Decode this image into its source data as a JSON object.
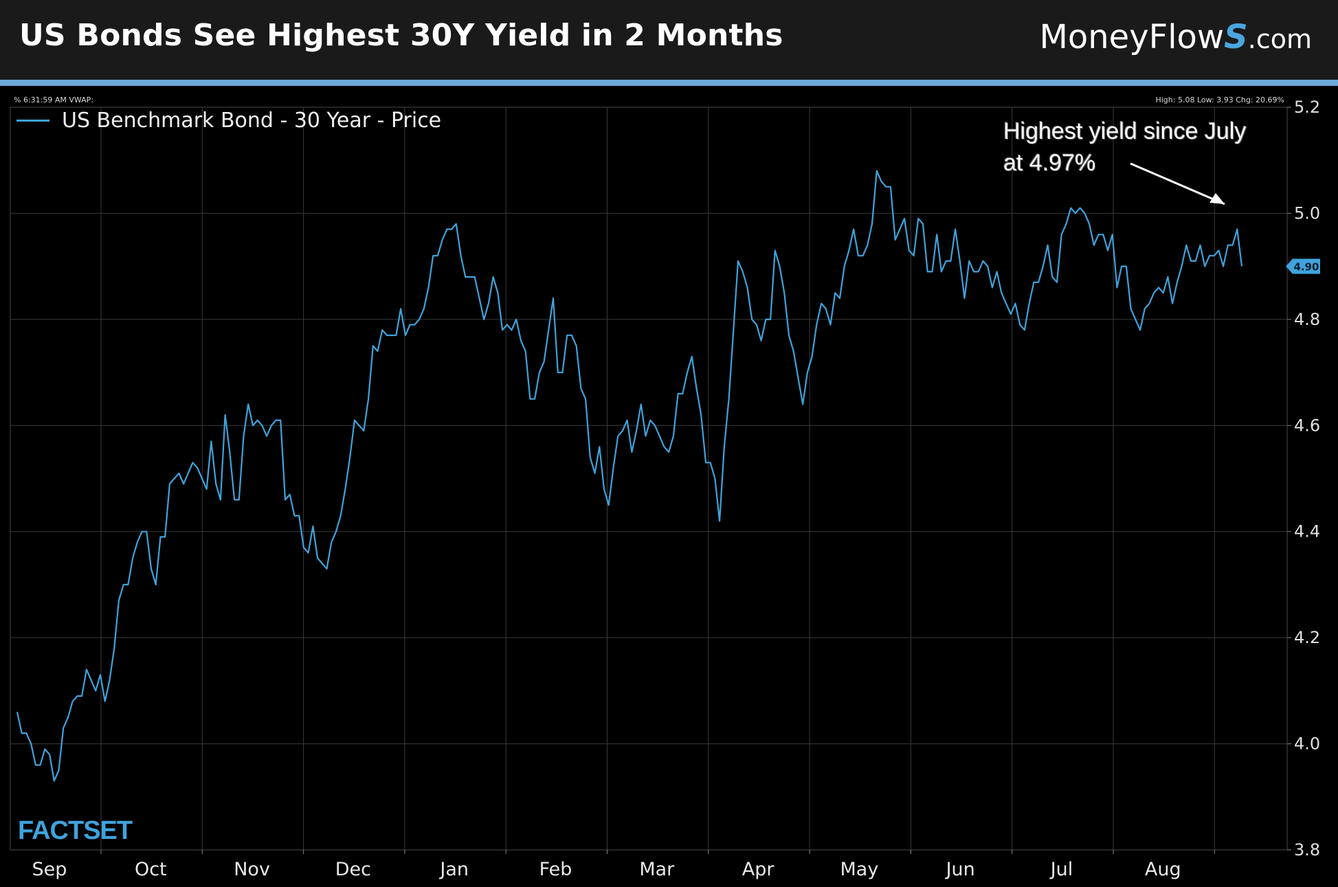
{
  "header": {
    "title": "US Bonds See Highest 30Y Yield in 2 Months",
    "brand_main": "MoneyFlow",
    "brand_s": "S",
    "brand_suffix": ".com"
  },
  "colors": {
    "header_bg": "#1a1a1a",
    "accent_bar": "#6aa9d8",
    "line": "#3fa3dc",
    "grid": "#3a3a3a",
    "background": "#000000",
    "last_value_tag": "#3fa3dc"
  },
  "status_bar": {
    "left": "% 6:31:59 AM VWAP:",
    "right": "High: 5.08 Low: 3.93 Chg: 20.69%"
  },
  "annotation": {
    "line1": "Highest yield since July",
    "line2": "at 4.97%"
  },
  "source_logo": "FACTSET",
  "chart_data": {
    "type": "line",
    "series": [
      {
        "name": "US Benchmark Bond - 30 Year - Price",
        "values": [
          4.06,
          4.02,
          4.02,
          4.0,
          3.96,
          3.96,
          3.99,
          3.98,
          3.93,
          3.95,
          4.03,
          4.05,
          4.08,
          4.09,
          4.09,
          4.14,
          4.12,
          4.1,
          4.13,
          4.08,
          4.12,
          4.18,
          4.27,
          4.3,
          4.3,
          4.35,
          4.38,
          4.4,
          4.4,
          4.33,
          4.3,
          4.39,
          4.39,
          4.49,
          4.5,
          4.51,
          4.49,
          4.51,
          4.53,
          4.52,
          4.5,
          4.48,
          4.57,
          4.49,
          4.46,
          4.62,
          4.55,
          4.46,
          4.46,
          4.58,
          4.64,
          4.6,
          4.61,
          4.6,
          4.58,
          4.6,
          4.61,
          4.61,
          4.46,
          4.47,
          4.43,
          4.43,
          4.37,
          4.36,
          4.41,
          4.35,
          4.34,
          4.33,
          4.38,
          4.4,
          4.43,
          4.48,
          4.54,
          4.61,
          4.6,
          4.59,
          4.65,
          4.75,
          4.74,
          4.78,
          4.77,
          4.77,
          4.77,
          4.82,
          4.77,
          4.79,
          4.79,
          4.8,
          4.82,
          4.86,
          4.92,
          4.92,
          4.95,
          4.97,
          4.97,
          4.98,
          4.92,
          4.88,
          4.88,
          4.88,
          4.84,
          4.8,
          4.83,
          4.88,
          4.85,
          4.78,
          4.79,
          4.78,
          4.8,
          4.76,
          4.74,
          4.65,
          4.65,
          4.7,
          4.72,
          4.78,
          4.84,
          4.7,
          4.7,
          4.77,
          4.77,
          4.75,
          4.67,
          4.65,
          4.54,
          4.51,
          4.56,
          4.48,
          4.45,
          4.52,
          4.58,
          4.59,
          4.61,
          4.55,
          4.59,
          4.64,
          4.58,
          4.61,
          4.6,
          4.58,
          4.56,
          4.55,
          4.58,
          4.66,
          4.66,
          4.7,
          4.73,
          4.67,
          4.62,
          4.53,
          4.53,
          4.5,
          4.42,
          4.56,
          4.65,
          4.78,
          4.91,
          4.89,
          4.86,
          4.8,
          4.79,
          4.76,
          4.8,
          4.8,
          4.93,
          4.9,
          4.85,
          4.77,
          4.74,
          4.69,
          4.64,
          4.7,
          4.73,
          4.79,
          4.83,
          4.82,
          4.79,
          4.85,
          4.84,
          4.9,
          4.93,
          4.97,
          4.92,
          4.92,
          4.94,
          4.98,
          5.08,
          5.06,
          5.05,
          5.05,
          4.95,
          4.97,
          4.99,
          4.93,
          4.92,
          4.99,
          4.98,
          4.89,
          4.89,
          4.96,
          4.89,
          4.91,
          4.91,
          4.97,
          4.91,
          4.84,
          4.91,
          4.89,
          4.89,
          4.91,
          4.9,
          4.86,
          4.89,
          4.85,
          4.83,
          4.81,
          4.83,
          4.79,
          4.78,
          4.83,
          4.87,
          4.87,
          4.9,
          4.94,
          4.88,
          4.87,
          4.96,
          4.98,
          5.01,
          5.0,
          5.01,
          5.0,
          4.98,
          4.94,
          4.96,
          4.96,
          4.93,
          4.96,
          4.86,
          4.9,
          4.9,
          4.82,
          4.8,
          4.78,
          4.82,
          4.83,
          4.85,
          4.86,
          4.85,
          4.88,
          4.83,
          4.87,
          4.9,
          4.94,
          4.91,
          4.91,
          4.94,
          4.9,
          4.92,
          4.92,
          4.93,
          4.9,
          4.94,
          4.94,
          4.97,
          4.9
        ]
      }
    ],
    "x_tick_labels": [
      "Sep",
      "Oct",
      "Nov",
      "Dec",
      "Jan",
      "Feb",
      "Mar",
      "Apr",
      "May",
      "Jun",
      "Jul",
      "Aug"
    ],
    "y_ticks": [
      3.8,
      4.0,
      4.2,
      4.4,
      4.6,
      4.8,
      5.0,
      5.2
    ],
    "ylim": [
      3.8,
      5.2
    ],
    "last_value_label": "4.90",
    "grid": true,
    "legend_position": "top-left",
    "title": "",
    "xlabel": "",
    "ylabel": ""
  }
}
